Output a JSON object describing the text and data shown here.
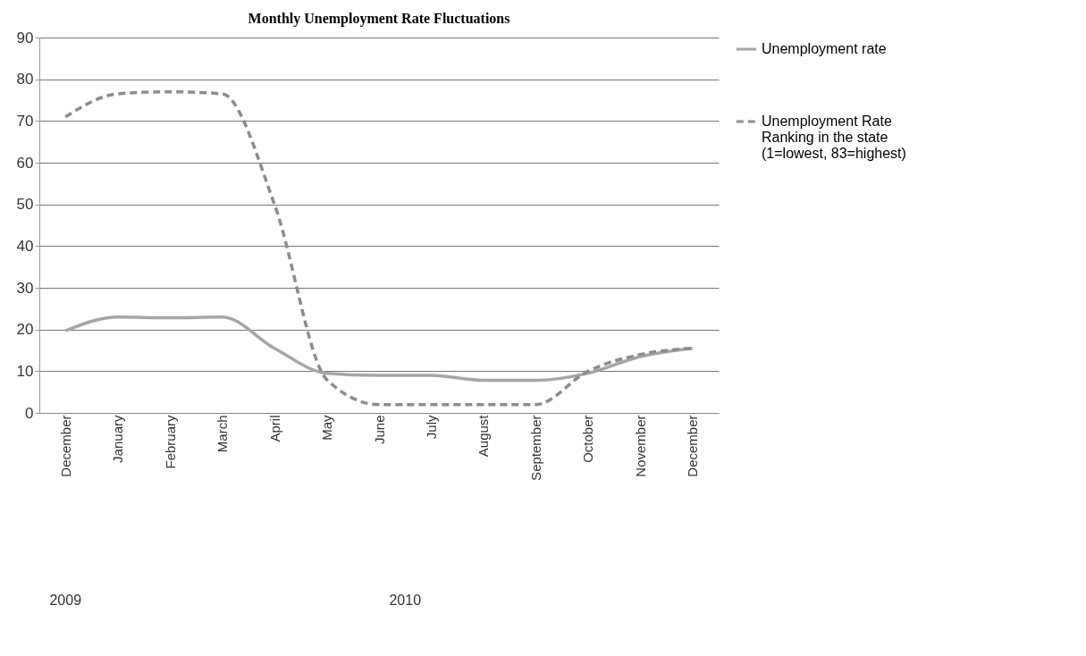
{
  "chart_data": {
    "type": "line",
    "title": "Monthly Unemployment Rate Fluctuations",
    "categories": [
      "December",
      "January",
      "February",
      "March",
      "April",
      "May",
      "June",
      "July",
      "August",
      "September",
      "October",
      "November",
      "December"
    ],
    "series": [
      {
        "name": "Unemployment rate",
        "color": "#a6a6a6",
        "line_style": "solid",
        "values": [
          19.7,
          23,
          22.8,
          23,
          15.5,
          9.5,
          9,
          9,
          7.8,
          7.8,
          9.5,
          13.5,
          15.5
        ]
      },
      {
        "name": "Unemployment Rate Ranking in the state (1=lowest, 83=highest)",
        "color": "#8c8c8c",
        "line_style": "dashed",
        "values": [
          71,
          76.5,
          77,
          76.5,
          50,
          8,
          2,
          2,
          2,
          2,
          10,
          14,
          15.5
        ]
      }
    ],
    "ylim": [
      0,
      90
    ],
    "yticks": [
      0,
      10,
      20,
      30,
      40,
      50,
      60,
      70,
      80,
      90
    ],
    "grid": "y",
    "legend": "right",
    "marker": "none",
    "annotations": [
      "2009",
      "2010"
    ]
  }
}
